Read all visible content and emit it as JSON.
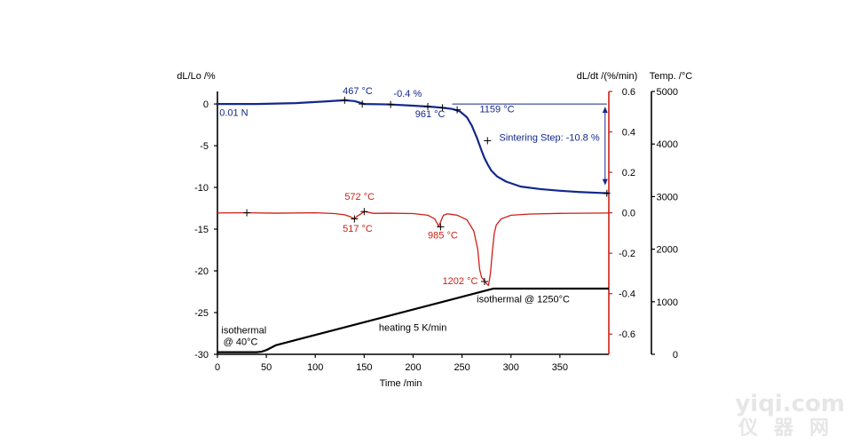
{
  "chart_data": {
    "type": "line",
    "title": "",
    "xlabel": "Time /min",
    "x_ticks": [
      0,
      50,
      100,
      150,
      200,
      250,
      300,
      350
    ],
    "xlim": [
      0,
      400
    ],
    "left_axis": {
      "label": "dL/Lo /%",
      "ticks": [
        0,
        -5,
        -10,
        -15,
        -20,
        -25,
        -30
      ],
      "ylim": [
        -30,
        1.5
      ],
      "color": "#000000"
    },
    "right_axis_rate": {
      "label": "dL/dt /(%/min)",
      "ticks": [
        "0.6",
        "0.4",
        "0.2",
        "0.0",
        "-0.2",
        "-0.4",
        "-0.6"
      ],
      "tick_values": [
        0.6,
        0.4,
        0.2,
        0.0,
        -0.2,
        -0.4,
        -0.6
      ],
      "ylim": [
        -0.7,
        0.6
      ],
      "color": "#cc1f17"
    },
    "right_axis_temp": {
      "label": "Temp. /°C",
      "ticks": [
        5000,
        4000,
        3000,
        2000,
        1000,
        0
      ],
      "ylim": [
        0,
        5000
      ],
      "color": "#000000"
    },
    "series": [
      {
        "name": "dL/Lo",
        "axis": "left",
        "color": "#12288c",
        "x": [
          0,
          40,
          80,
          110,
          130,
          140,
          150,
          175,
          200,
          220,
          230,
          240,
          248,
          255,
          260,
          265,
          270,
          273,
          276,
          280,
          286,
          295,
          310,
          330,
          350,
          370,
          390,
          400
        ],
        "y": [
          0.0,
          0.0,
          0.1,
          0.3,
          0.45,
          0.35,
          0.0,
          -0.05,
          -0.2,
          -0.35,
          -0.45,
          -0.6,
          -0.9,
          -1.6,
          -2.6,
          -4.0,
          -5.6,
          -6.5,
          -7.2,
          -8.0,
          -8.7,
          -9.3,
          -9.9,
          -10.2,
          -10.4,
          -10.55,
          -10.65,
          -10.7
        ]
      },
      {
        "name": "dL/dt",
        "axis": "right_rate",
        "color": "#cc1f17",
        "x": [
          0,
          30,
          60,
          100,
          120,
          130,
          136,
          140,
          143,
          147,
          150,
          160,
          175,
          200,
          215,
          222,
          225,
          226,
          228,
          231,
          235,
          245,
          255,
          262,
          266,
          268,
          270,
          272,
          273,
          275,
          277,
          279,
          281,
          283,
          285,
          290,
          300,
          320,
          350,
          400
        ],
        "y": [
          -0.001,
          0.0,
          -0.002,
          0.0,
          -0.004,
          -0.01,
          -0.02,
          -0.03,
          -0.016,
          -0.004,
          0.006,
          -0.003,
          -0.002,
          -0.004,
          -0.012,
          -0.03,
          -0.055,
          -0.07,
          -0.045,
          -0.012,
          -0.005,
          -0.012,
          -0.035,
          -0.09,
          -0.18,
          -0.28,
          -0.32,
          -0.33,
          -0.34,
          -0.35,
          -0.36,
          -0.3,
          -0.19,
          -0.1,
          -0.06,
          -0.03,
          -0.012,
          -0.006,
          -0.003,
          -0.001
        ]
      },
      {
        "name": "Temp.",
        "axis": "right_temp",
        "color": "#000000",
        "x": [
          0,
          15,
          40,
          45,
          50,
          60,
          280,
          282,
          400
        ],
        "y": [
          40,
          40,
          40,
          50,
          80,
          175,
          1240,
          1250,
          1250
        ]
      }
    ],
    "markers": [
      {
        "series": "dL/Lo",
        "x": 130,
        "y": 0.45
      },
      {
        "series": "dL/Lo",
        "x": 148,
        "y": 0.0
      },
      {
        "series": "dL/Lo",
        "x": 177,
        "y": -0.05
      },
      {
        "series": "dL/Lo",
        "x": 215,
        "y": -0.3
      },
      {
        "series": "dL/Lo",
        "x": 230,
        "y": -0.45
      },
      {
        "series": "dL/Lo",
        "x": 245,
        "y": -0.7
      },
      {
        "series": "dL/Lo",
        "x": 276,
        "y": -4.4
      },
      {
        "series": "dL/Lo",
        "x": 398,
        "y": -10.7
      },
      {
        "series": "dL/dt",
        "x": 30,
        "y": 0.0
      },
      {
        "series": "dL/dt",
        "x": 140,
        "y": -0.03
      },
      {
        "series": "dL/dt",
        "x": 150,
        "y": 0.006
      },
      {
        "series": "dL/dt",
        "x": 228,
        "y": -0.07
      },
      {
        "series": "dL/dt",
        "x": 273,
        "y": -0.34
      }
    ],
    "annotations": [
      {
        "text": "467 °C",
        "color": "#12288c",
        "x": 128,
        "y": 1.2
      },
      {
        "text": "-0.4 %",
        "color": "#12288c",
        "x": 180,
        "y": 0.85
      },
      {
        "text": "0.01 N",
        "color": "#12288c",
        "x": 2,
        "y": -1.4
      },
      {
        "text": "961 °C",
        "color": "#12288c",
        "x": 202,
        "y": -1.6
      },
      {
        "text": "1159 °C",
        "color": "#12288c",
        "x": 268,
        "y": -1.0
      },
      {
        "text": "Sintering Step: -10.8 %",
        "color": "#12288c",
        "x": 288,
        "y": -4.4
      },
      {
        "text": "572 °C",
        "color": "#cc1f17",
        "x": 130,
        "y": -11.5
      },
      {
        "text": "517 °C",
        "color": "#cc1f17",
        "x": 128,
        "y": -15.3
      },
      {
        "text": "985 °C",
        "color": "#cc1f17",
        "x": 215,
        "y": -16.1
      },
      {
        "text": "1202 °C",
        "color": "#cc1f17",
        "x": 230,
        "y": -21.6
      },
      {
        "text": "isothermal @ 1250°C",
        "color": "#000000",
        "x": 265,
        "y": -23.8
      },
      {
        "text": "heating 5 K/min",
        "color": "#000000",
        "x": 165,
        "y": -27.2
      },
      {
        "text": "isothermal",
        "color": "#000000",
        "x": 4,
        "y": -27.5
      },
      {
        "text": "@ 40°C",
        "color": "#000000",
        "x": 6,
        "y": -28.9
      }
    ],
    "reference_line": {
      "y": 0.0,
      "x_from": 240,
      "x_to": 398,
      "color": "#12288c"
    },
    "step_arrow": {
      "x": 398,
      "y_from": 0.0,
      "y_to": -10.7,
      "color": "#12288c"
    }
  },
  "watermark": {
    "line1": "yiqi.com",
    "line2": "仪器网"
  }
}
